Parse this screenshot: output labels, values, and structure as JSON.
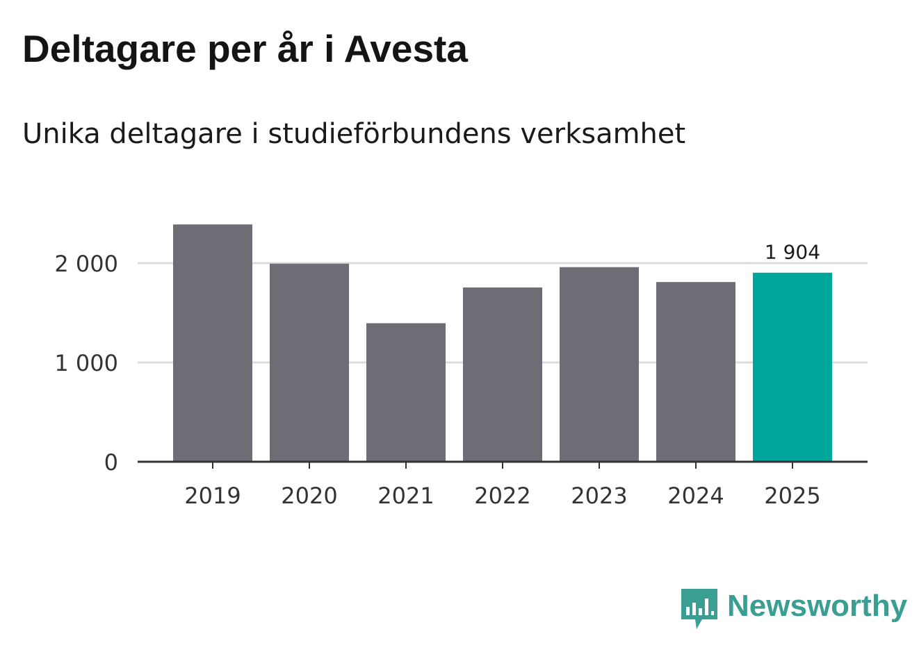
{
  "title": "Deltagare per år i Avesta",
  "subtitle": "Unika deltagare i studieförbundens verksamhet",
  "brand": {
    "name": "Newsworthy",
    "icon": "newsworthy-logo-icon",
    "color": "#3a9e93"
  },
  "colors": {
    "bar_default": "#6e6d75",
    "bar_highlight": "#00a59b",
    "grid": "#dcdcdc",
    "axis": "#333333"
  },
  "chart_data": {
    "type": "bar",
    "title": "Deltagare per år i Avesta",
    "subtitle": "Unika deltagare i studieförbundens verksamhet",
    "xlabel": "",
    "ylabel": "",
    "categories": [
      "2019",
      "2020",
      "2021",
      "2022",
      "2023",
      "2024",
      "2025"
    ],
    "values": [
      2390,
      1995,
      1395,
      1755,
      1960,
      1810,
      1904
    ],
    "highlight_index": 6,
    "highlight_label": "1 904",
    "ylim": [
      0,
      2400
    ],
    "yticks": [
      0,
      1000,
      2000
    ],
    "ytick_labels": [
      "0",
      "1 000",
      "2 000"
    ],
    "grid": true
  }
}
